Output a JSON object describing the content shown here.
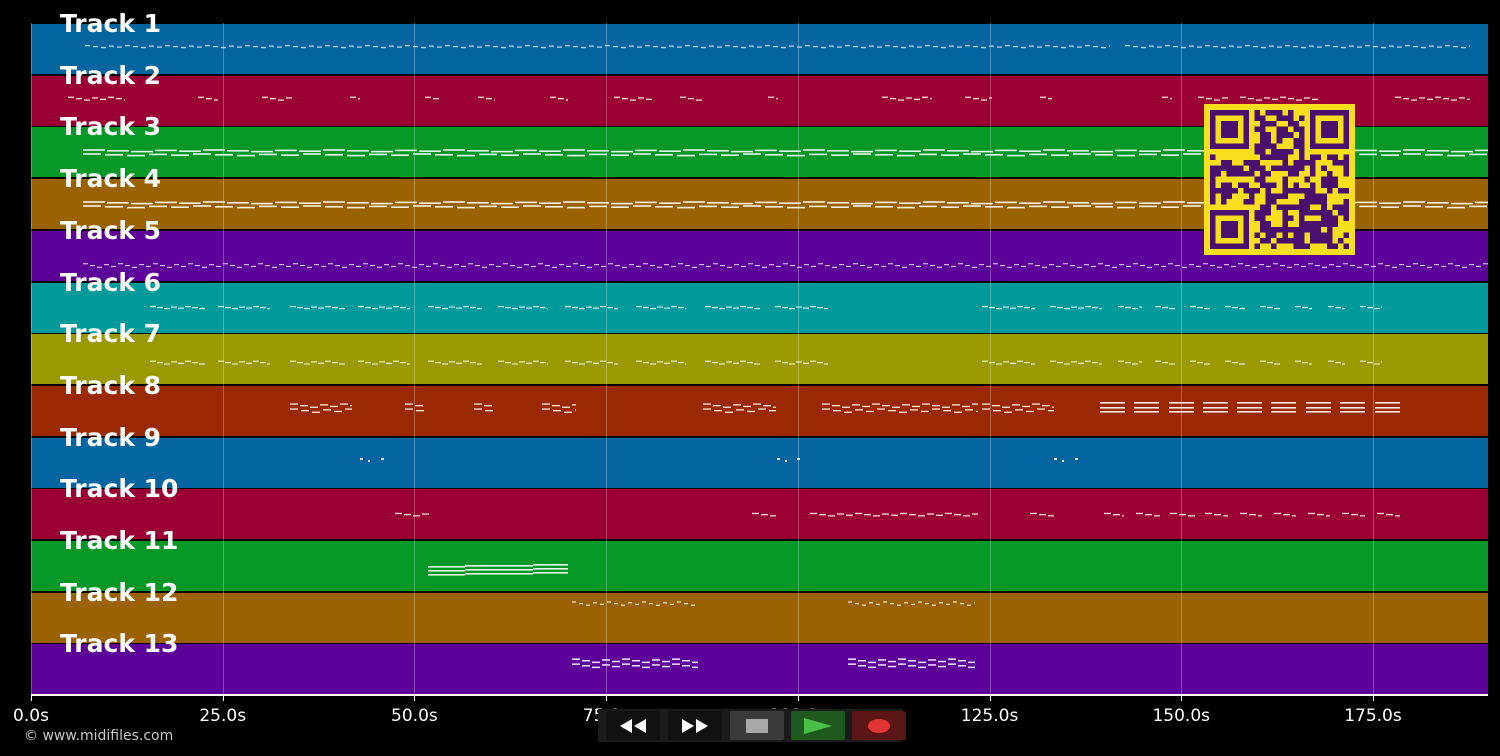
{
  "tracks": [
    {
      "label": "Track 1",
      "color": "#0565a0"
    },
    {
      "label": "Track 2",
      "color": "#9b0034"
    },
    {
      "label": "Track 3",
      "color": "#059826"
    },
    {
      "label": "Track 4",
      "color": "#9a6200"
    },
    {
      "label": "Track 5",
      "color": "#5d009a"
    },
    {
      "label": "Track 6",
      "color": "#009a9a"
    },
    {
      "label": "Track 7",
      "color": "#9a9a00"
    },
    {
      "label": "Track 8",
      "color": "#9a2800"
    },
    {
      "label": "Track 9",
      "color": "#0565a0"
    },
    {
      "label": "Track 10",
      "color": "#9b0034"
    },
    {
      "label": "Track 11",
      "color": "#059826"
    },
    {
      "label": "Track 12",
      "color": "#9a6200"
    },
    {
      "label": "Track 13",
      "color": "#5d009a"
    }
  ],
  "timeline": {
    "max_seconds": 190,
    "ticks": [
      {
        "value": 0,
        "label": "0.0s"
      },
      {
        "value": 25,
        "label": "25.0s"
      },
      {
        "value": 50,
        "label": "50.0s"
      },
      {
        "value": 75,
        "label": "75.0s"
      },
      {
        "value": 100,
        "label": "100.0s"
      },
      {
        "value": 125,
        "label": "125.0s"
      },
      {
        "value": 150,
        "label": "150.0s"
      },
      {
        "value": 175,
        "label": "175.0s"
      }
    ]
  },
  "transport": {
    "rewind_icon": "rewind-icon",
    "forward_icon": "fast-forward-icon",
    "stop_icon": "stop-icon",
    "play_icon": "play-icon",
    "record_icon": "record-icon"
  },
  "qr_code": {
    "icon": "qr-code-icon",
    "foreground": "#4b0f6e",
    "background": "#f7df1e"
  },
  "footer": {
    "copyright": "© www.midifiles.com"
  }
}
